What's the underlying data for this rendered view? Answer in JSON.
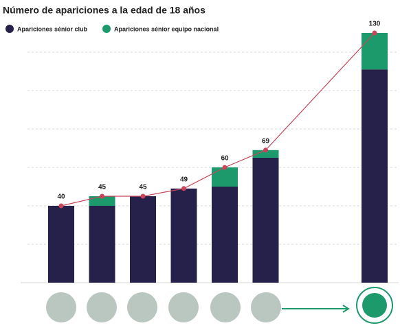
{
  "chart_data": {
    "type": "bar",
    "stacked": true,
    "title": "Número de apariciones a la edad de 18 años",
    "series": [
      {
        "name": "Apariciones sénior club",
        "color": "#25214b",
        "values": [
          40,
          40,
          45,
          49,
          50,
          65,
          111
        ]
      },
      {
        "name": "Apariciones sénior equipo nacional",
        "color": "#1c9a6c",
        "values": [
          0,
          5,
          0,
          0,
          10,
          4,
          19
        ]
      }
    ],
    "totals": {
      "color": "#c8455a",
      "values": [
        40,
        45,
        45,
        49,
        60,
        69,
        130
      ]
    },
    "ylim": [
      0,
      140
    ],
    "gridlines": [
      20,
      40,
      60,
      80,
      100,
      120
    ],
    "grid": true
  }
}
